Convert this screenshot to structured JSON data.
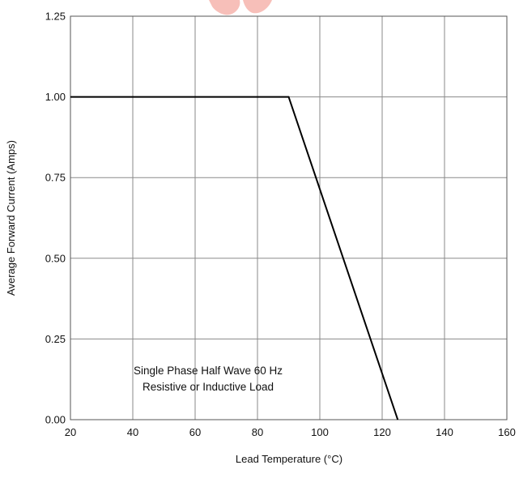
{
  "chart_data": {
    "type": "line",
    "title": "",
    "xlabel": "Lead Temperature (°C)",
    "ylabel": "Average Forward Current (Amps)",
    "xlim": [
      20,
      160
    ],
    "ylim": [
      0,
      1.25
    ],
    "x_ticks": [
      20,
      40,
      60,
      80,
      100,
      120,
      140,
      160
    ],
    "x_tick_labels": [
      "20",
      "40",
      "60",
      "80",
      "100",
      "120",
      "140",
      "160"
    ],
    "y_ticks": [
      0,
      0.25,
      0.5,
      0.75,
      1.0,
      1.25
    ],
    "y_tick_labels": [
      "0.00",
      "0.25",
      "0.50",
      "0.75",
      "1.00",
      "1.25"
    ],
    "grid": true,
    "series": [
      {
        "x": [
          20,
          90,
          125
        ],
        "y": [
          1.0,
          1.0,
          0.0
        ],
        "color": "#000000"
      }
    ],
    "annotations": [
      "Single Phase Half Wave 60 Hz",
      "Resistive or Inductive Load"
    ]
  }
}
